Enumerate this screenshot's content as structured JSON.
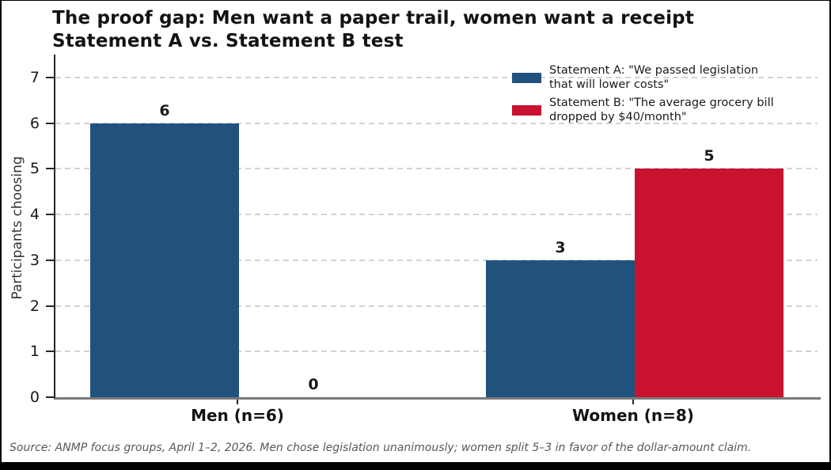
{
  "title": {
    "line1": "The proof gap: Men want a paper trail, women want a receipt",
    "line2": "Statement A vs. Statement B test"
  },
  "chart_data": {
    "type": "bar",
    "categories": [
      "Men (n=6)",
      "Women (n=8)"
    ],
    "series": [
      {
        "name": "Statement A",
        "label": "Statement A: \"We passed legislation that will lower costs\"",
        "color": "#21527E",
        "values": [
          6,
          3
        ]
      },
      {
        "name": "Statement B",
        "label": "Statement B: \"The average grocery bill dropped by $40/month\"",
        "color": "#C8122F",
        "values": [
          0,
          5
        ]
      }
    ],
    "value_labels": {
      "statement_a": [
        6,
        3
      ],
      "statement_b": [
        0,
        5
      ]
    },
    "title": "The proof gap: Men want a paper trail, women want a receipt",
    "subtitle": "Statement A vs. Statement B test",
    "xlabel": "",
    "ylabel": "Participants choosing",
    "yticks": [
      0,
      1,
      2,
      3,
      4,
      5,
      6,
      7
    ],
    "ylim": [
      0,
      7.5
    ],
    "grid": "horizontal dashed",
    "legend_position": "upper right",
    "legend": [
      {
        "color": "#21527E",
        "lines": [
          "Statement A: \"We passed legislation",
          "that will lower costs\""
        ]
      },
      {
        "color": "#C8122F",
        "lines": [
          "Statement B: \"The average grocery bill",
          "dropped by $40/month\""
        ]
      }
    ]
  },
  "footer": {
    "source": "Source: ANMP focus groups, April 1–2, 2026. Men chose legislation unanimously; women split 5–3 in favor of the dollar-amount claim."
  }
}
